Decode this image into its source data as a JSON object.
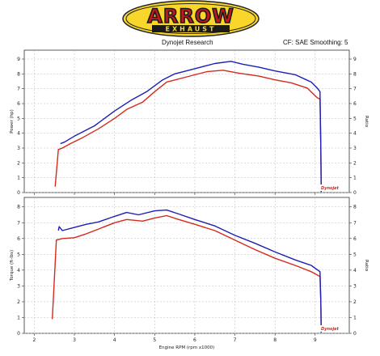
{
  "header": {
    "logo_text": "ARROW",
    "logo_subtext": "EXHAUST",
    "title": "Dynojet Research",
    "correction": "CF: SAE Smoothing: 5"
  },
  "brand_mark": "Dynojet",
  "colors": {
    "run_red": "#d42a1c",
    "run_blue": "#1d1fb4",
    "logo_yellow": "#f8d72a",
    "logo_red": "#c0181d",
    "grid": "#b9b9b9"
  },
  "chart_data": [
    {
      "type": "line",
      "title": "",
      "xlabel": "",
      "ylabel": "Power (hp)",
      "y2label": "Ratio",
      "xlim": [
        1.75,
        9.85
      ],
      "ylim": [
        0,
        9.6
      ],
      "x_ticks": [],
      "y_ticks": [
        "0",
        "1",
        "2",
        "3",
        "4",
        "5",
        "6",
        "7",
        "8",
        "9"
      ],
      "grid": true,
      "series": [
        {
          "color": "red",
          "x": [
            2.52,
            2.6,
            2.7,
            2.9,
            3.2,
            3.6,
            4.0,
            4.3,
            4.7,
            5.0,
            5.3,
            5.8,
            6.3,
            6.7,
            7.1,
            7.6,
            8.0,
            8.4,
            8.8,
            9.05,
            9.12,
            9.14,
            9.15
          ],
          "y": [
            0.4,
            2.9,
            3.0,
            3.3,
            3.7,
            4.3,
            5.0,
            5.6,
            6.1,
            6.8,
            7.45,
            7.8,
            8.15,
            8.25,
            8.05,
            7.85,
            7.6,
            7.4,
            7.05,
            6.4,
            6.3,
            3.0,
            0.05
          ]
        },
        {
          "color": "blue",
          "x": [
            2.65,
            2.75,
            3.0,
            3.5,
            4.0,
            4.4,
            4.8,
            5.2,
            5.5,
            6.0,
            6.5,
            6.9,
            7.2,
            7.6,
            8.0,
            8.5,
            8.9,
            9.05,
            9.12,
            9.14,
            9.15
          ],
          "y": [
            3.3,
            3.4,
            3.8,
            4.5,
            5.5,
            6.2,
            6.8,
            7.6,
            8.0,
            8.35,
            8.7,
            8.85,
            8.65,
            8.45,
            8.2,
            7.95,
            7.45,
            7.05,
            6.8,
            3.0,
            0.05
          ]
        }
      ]
    },
    {
      "type": "line",
      "title": "",
      "xlabel": "Engine RPM (rpm x1000)",
      "ylabel": "Torque (ft-lbs)",
      "y2label": "Ratio",
      "xlim": [
        1.75,
        9.85
      ],
      "ylim": [
        0,
        8.6
      ],
      "x_ticks": [
        "2",
        "3",
        "4",
        "5",
        "6",
        "7",
        "8",
        "9"
      ],
      "y_ticks": [
        "0",
        "1",
        "2",
        "3",
        "4",
        "5",
        "6",
        "7",
        "8"
      ],
      "grid": true,
      "series": [
        {
          "color": "red",
          "x": [
            2.45,
            2.55,
            2.7,
            3.0,
            3.3,
            3.6,
            4.0,
            4.3,
            4.7,
            5.0,
            5.3,
            5.6,
            6.0,
            6.5,
            7.0,
            7.5,
            8.0,
            8.5,
            8.9,
            9.12,
            9.14,
            9.15
          ],
          "y": [
            0.9,
            5.9,
            6.0,
            6.05,
            6.3,
            6.6,
            7.0,
            7.2,
            7.1,
            7.3,
            7.45,
            7.2,
            6.9,
            6.5,
            5.9,
            5.3,
            4.75,
            4.3,
            3.9,
            3.6,
            2.0,
            0.05
          ]
        },
        {
          "color": "blue",
          "x": [
            2.6,
            2.62,
            2.7,
            3.0,
            3.3,
            3.6,
            4.0,
            4.3,
            4.6,
            5.0,
            5.3,
            5.6,
            6.0,
            6.5,
            7.0,
            7.5,
            8.0,
            8.5,
            8.9,
            9.12,
            9.14,
            9.15
          ],
          "y": [
            6.5,
            6.75,
            6.5,
            6.7,
            6.9,
            7.05,
            7.4,
            7.65,
            7.5,
            7.75,
            7.8,
            7.55,
            7.2,
            6.8,
            6.2,
            5.7,
            5.15,
            4.65,
            4.3,
            3.9,
            2.0,
            0.05
          ]
        }
      ]
    }
  ]
}
